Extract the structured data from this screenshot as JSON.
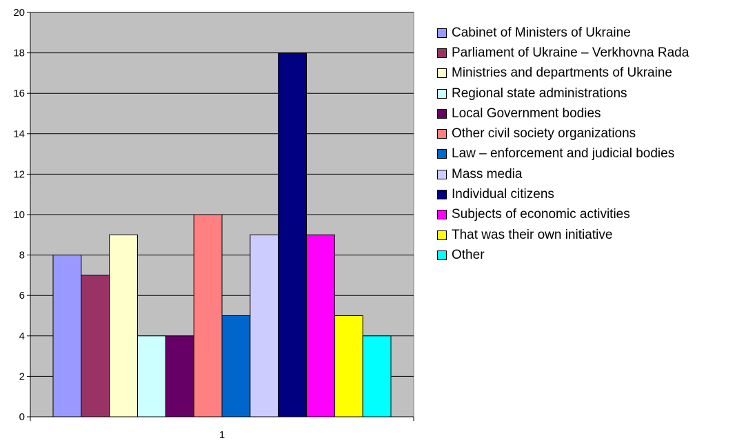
{
  "chart_data": {
    "type": "bar",
    "categories": [
      "1"
    ],
    "ylim": [
      0,
      20
    ],
    "yticks": [
      0,
      2,
      4,
      6,
      8,
      10,
      12,
      14,
      16,
      18,
      20
    ],
    "grid": true,
    "plot_background": "#c0c0c0",
    "legend_position": "right",
    "series": [
      {
        "name": "Cabinet of Ministers of Ukraine",
        "values": [
          8
        ],
        "color": "#9999ff"
      },
      {
        "name": "Parliament of Ukraine – Verkhovna Rada",
        "values": [
          7
        ],
        "color": "#993366"
      },
      {
        "name": "Ministries and departments of Ukraine",
        "values": [
          9
        ],
        "color": "#ffffcc"
      },
      {
        "name": "Regional state administrations",
        "values": [
          4
        ],
        "color": "#ccffff"
      },
      {
        "name": "Local Government bodies",
        "values": [
          4
        ],
        "color": "#660066"
      },
      {
        "name": "Other civil society organizations",
        "values": [
          10
        ],
        "color": "#ff8080"
      },
      {
        "name": "Law – enforcement and judicial bodies",
        "values": [
          5
        ],
        "color": "#0066cc"
      },
      {
        "name": "Mass media",
        "values": [
          9
        ],
        "color": "#ccccff"
      },
      {
        "name": "Individual citizens",
        "values": [
          18
        ],
        "color": "#000080"
      },
      {
        "name": "Subjects of economic activities",
        "values": [
          9
        ],
        "color": "#ff00ff"
      },
      {
        "name": "That was their own initiative",
        "values": [
          5
        ],
        "color": "#ffff00"
      },
      {
        "name": "Other",
        "values": [
          4
        ],
        "color": "#00ffff"
      }
    ]
  }
}
